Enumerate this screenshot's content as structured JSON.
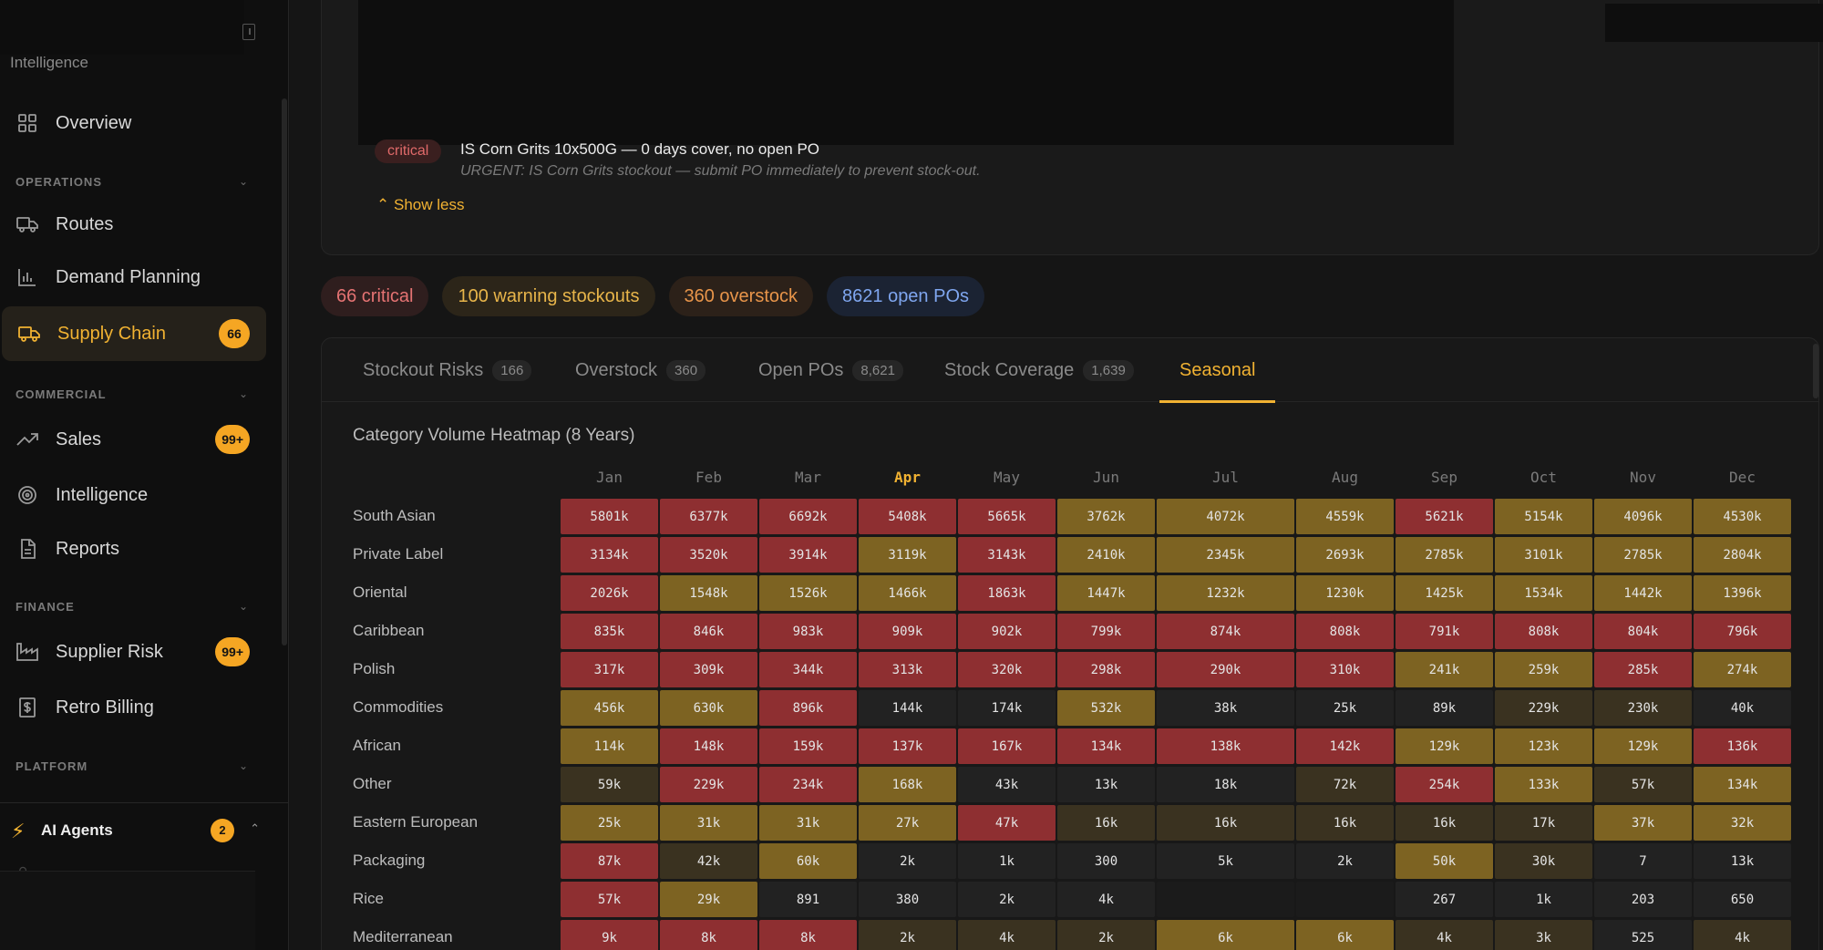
{
  "sidebar": {
    "brand": "Intelligence",
    "items": [
      {
        "id": "overview",
        "label": "Overview",
        "icon": "grid-icon"
      },
      {
        "id": "routes",
        "label": "Routes",
        "icon": "truck-icon"
      },
      {
        "id": "demand",
        "label": "Demand Planning",
        "icon": "bar-chart-icon"
      },
      {
        "id": "supply",
        "label": "Supply Chain",
        "icon": "truck-icon",
        "badge": "66",
        "active": true
      },
      {
        "id": "sales",
        "label": "Sales",
        "icon": "trend-up-icon",
        "badge": "99+"
      },
      {
        "id": "intel",
        "label": "Intelligence",
        "icon": "target-icon"
      },
      {
        "id": "reports",
        "label": "Reports",
        "icon": "document-icon"
      },
      {
        "id": "supplier",
        "label": "Supplier Risk",
        "icon": "factory-icon",
        "badge": "99+"
      },
      {
        "id": "retro",
        "label": "Retro Billing",
        "icon": "billing-icon"
      }
    ],
    "sections": {
      "operations": "OPERATIONS",
      "commercial": "COMMERCIAL",
      "finance": "FINANCE",
      "platform": "PLATFORM"
    },
    "ai_agents": {
      "label": "AI Agents",
      "badge": "2"
    }
  },
  "alerts": {
    "top_chip": "critical",
    "item": {
      "severity": "critical",
      "title": "IS Corn Grits 10x500G — 0 days cover, no open PO",
      "subtitle": "URGENT: IS Corn Grits stockout — submit PO immediately to prevent stock-out."
    },
    "show_less": "Show less"
  },
  "summary": {
    "critical": "66 critical",
    "warning": "100 warning stockouts",
    "overstock": "360 overstock",
    "open_pos": "8621 open POs"
  },
  "tabs": [
    {
      "label": "Stockout Risks",
      "count": "166"
    },
    {
      "label": "Overstock",
      "count": "360"
    },
    {
      "label": "Open POs",
      "count": "8,621"
    },
    {
      "label": "Stock Coverage",
      "count": "1,639"
    },
    {
      "label": "Seasonal",
      "count": "",
      "active": true
    }
  ],
  "heatmap": {
    "title": "Category Volume Heatmap (8 Years)",
    "months": [
      "Jan",
      "Feb",
      "Mar",
      "Apr",
      "May",
      "Jun",
      "Jul",
      "Aug",
      "Sep",
      "Oct",
      "Nov",
      "Dec"
    ],
    "current_month": "Apr",
    "colors": {
      "red": "#8e2f31",
      "olive": "#7d6322",
      "dim": "#3a3220",
      "dark": "#222222",
      "empty": "#1b1b1b"
    },
    "rows": [
      {
        "label": "South Asian",
        "values": [
          "5801k",
          "6377k",
          "6692k",
          "5408k",
          "5665k",
          "3762k",
          "4072k",
          "4559k",
          "5621k",
          "5154k",
          "4096k",
          "4530k"
        ],
        "levels": [
          "red",
          "red",
          "red",
          "red",
          "red",
          "olive",
          "olive",
          "olive",
          "red",
          "olive",
          "olive",
          "olive"
        ]
      },
      {
        "label": "Private Label",
        "values": [
          "3134k",
          "3520k",
          "3914k",
          "3119k",
          "3143k",
          "2410k",
          "2345k",
          "2693k",
          "2785k",
          "3101k",
          "2785k",
          "2804k"
        ],
        "levels": [
          "red",
          "red",
          "red",
          "olive",
          "red",
          "olive",
          "olive",
          "olive",
          "olive",
          "olive",
          "olive",
          "olive"
        ]
      },
      {
        "label": "Oriental",
        "values": [
          "2026k",
          "1548k",
          "1526k",
          "1466k",
          "1863k",
          "1447k",
          "1232k",
          "1230k",
          "1425k",
          "1534k",
          "1442k",
          "1396k"
        ],
        "levels": [
          "red",
          "olive",
          "olive",
          "olive",
          "red",
          "olive",
          "olive",
          "olive",
          "olive",
          "olive",
          "olive",
          "olive"
        ]
      },
      {
        "label": "Caribbean",
        "values": [
          "835k",
          "846k",
          "983k",
          "909k",
          "902k",
          "799k",
          "874k",
          "808k",
          "791k",
          "808k",
          "804k",
          "796k"
        ],
        "levels": [
          "red",
          "red",
          "red",
          "red",
          "red",
          "red",
          "red",
          "red",
          "red",
          "red",
          "red",
          "red"
        ]
      },
      {
        "label": "Polish",
        "values": [
          "317k",
          "309k",
          "344k",
          "313k",
          "320k",
          "298k",
          "290k",
          "310k",
          "241k",
          "259k",
          "285k",
          "274k"
        ],
        "levels": [
          "red",
          "red",
          "red",
          "red",
          "red",
          "red",
          "red",
          "red",
          "olive",
          "olive",
          "red",
          "olive"
        ]
      },
      {
        "label": "Commodities",
        "values": [
          "456k",
          "630k",
          "896k",
          "144k",
          "174k",
          "532k",
          "38k",
          "25k",
          "89k",
          "229k",
          "230k",
          "40k"
        ],
        "levels": [
          "olive",
          "olive",
          "red",
          "dark",
          "dark",
          "olive",
          "dark",
          "dark",
          "dark",
          "dim",
          "dim",
          "dark"
        ]
      },
      {
        "label": "African",
        "values": [
          "114k",
          "148k",
          "159k",
          "137k",
          "167k",
          "134k",
          "138k",
          "142k",
          "129k",
          "123k",
          "129k",
          "136k"
        ],
        "levels": [
          "olive",
          "red",
          "red",
          "red",
          "red",
          "red",
          "red",
          "red",
          "olive",
          "olive",
          "olive",
          "red"
        ]
      },
      {
        "label": "Other",
        "values": [
          "59k",
          "229k",
          "234k",
          "168k",
          "43k",
          "13k",
          "18k",
          "72k",
          "254k",
          "133k",
          "57k",
          "134k"
        ],
        "levels": [
          "dim",
          "red",
          "red",
          "olive",
          "dark",
          "dark",
          "dark",
          "dim",
          "red",
          "olive",
          "dim",
          "olive"
        ]
      },
      {
        "label": "Eastern European",
        "values": [
          "25k",
          "31k",
          "31k",
          "27k",
          "47k",
          "16k",
          "16k",
          "16k",
          "16k",
          "17k",
          "37k",
          "32k"
        ],
        "levels": [
          "olive",
          "olive",
          "olive",
          "olive",
          "red",
          "dim",
          "dim",
          "dim",
          "dim",
          "dim",
          "olive",
          "olive"
        ]
      },
      {
        "label": "Packaging",
        "values": [
          "87k",
          "42k",
          "60k",
          "2k",
          "1k",
          "300",
          "5k",
          "2k",
          "50k",
          "30k",
          "7",
          "13k"
        ],
        "levels": [
          "red",
          "dim",
          "olive",
          "dark",
          "dark",
          "dark",
          "dark",
          "dark",
          "olive",
          "dim",
          "dark",
          "dark"
        ]
      },
      {
        "label": "Rice",
        "values": [
          "57k",
          "29k",
          "891",
          "380",
          "2k",
          "4k",
          "",
          "",
          "267",
          "1k",
          "203",
          "650"
        ],
        "levels": [
          "red",
          "olive",
          "dark",
          "dark",
          "dark",
          "dark",
          "empty",
          "empty",
          "dark",
          "dark",
          "dark",
          "dark"
        ]
      },
      {
        "label": "Mediterranean",
        "values": [
          "9k",
          "8k",
          "8k",
          "2k",
          "4k",
          "2k",
          "6k",
          "6k",
          "4k",
          "3k",
          "525",
          "4k"
        ],
        "levels": [
          "red",
          "red",
          "red",
          "dim",
          "dim",
          "dim",
          "olive",
          "olive",
          "dim",
          "dim",
          "dark",
          "dim"
        ]
      }
    ]
  }
}
